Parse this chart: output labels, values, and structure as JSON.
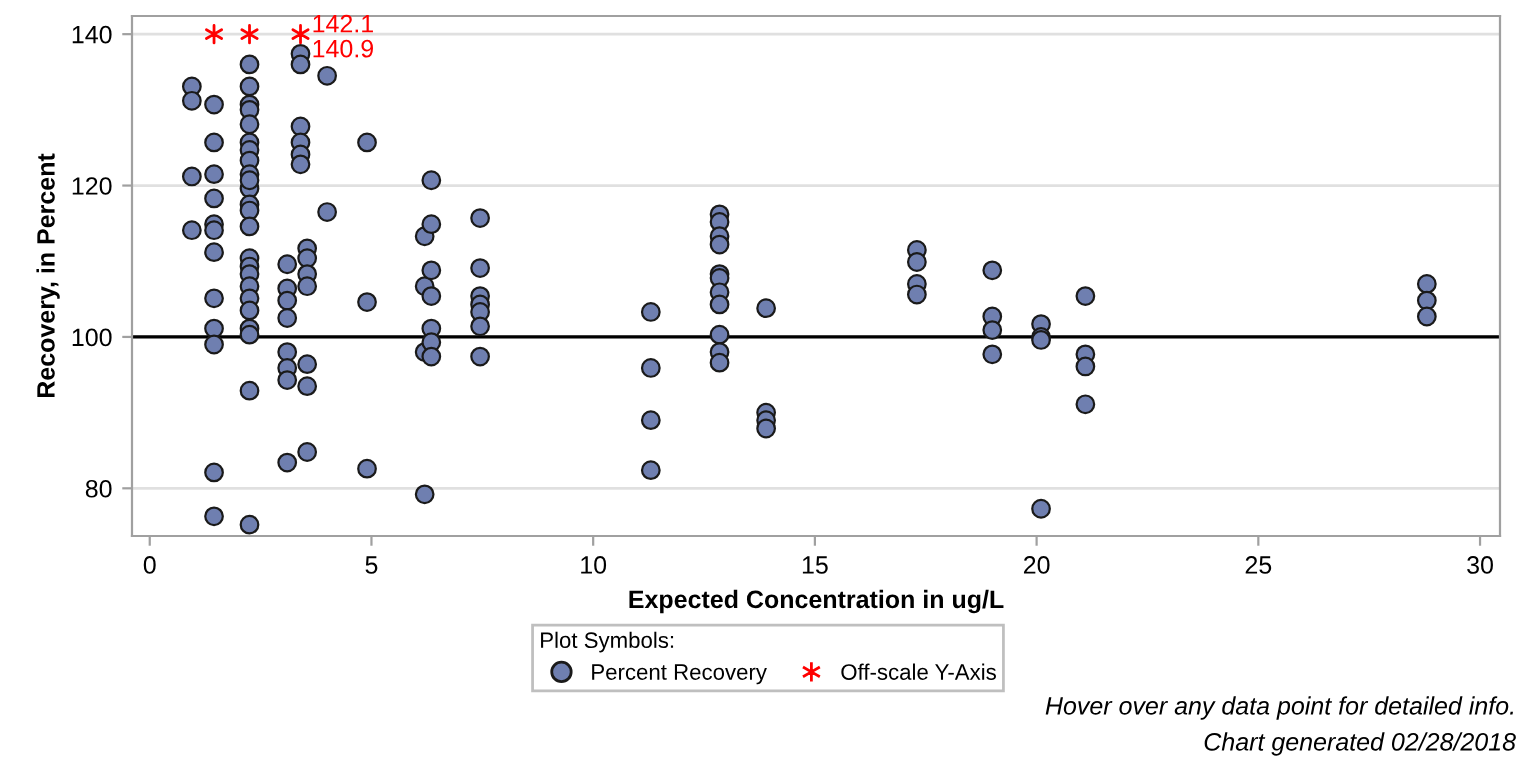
{
  "chart_data": {
    "type": "scatter",
    "xlabel": "Expected Concentration in ug/L",
    "ylabel": "Recovery, in Percent",
    "xlim": [
      -0.4,
      30.45
    ],
    "ylim": [
      73.7,
      142.4
    ],
    "xticks": [
      0,
      5,
      10,
      15,
      20,
      25,
      30
    ],
    "yticks": [
      80,
      100,
      120,
      140
    ],
    "grid": "y",
    "legend": "bottom",
    "legend_title": "Plot Symbols:",
    "ref_lines": [
      {
        "axis": "y",
        "value": 100,
        "color": "#000000",
        "line_style": "solid"
      }
    ],
    "series": [
      {
        "name": "Percent Recovery",
        "color": "#6f7fb0",
        "marker": "circle",
        "x": [
          0.95,
          0.95,
          0.95,
          0.95,
          1.45,
          1.45,
          1.45,
          1.45,
          1.45,
          1.45,
          1.45,
          1.45,
          1.45,
          1.45,
          1.45,
          1.45,
          2.25,
          2.25,
          2.25,
          2.25,
          2.25,
          2.25,
          2.25,
          2.25,
          2.25,
          2.25,
          2.25,
          2.25,
          2.25,
          2.25,
          2.25,
          2.25,
          2.25,
          2.25,
          2.25,
          2.25,
          2.25,
          2.25,
          2.25,
          2.25,
          3.1,
          3.1,
          3.1,
          3.1,
          3.1,
          3.1,
          3.1,
          3.1,
          3.4,
          3.4,
          3.4,
          3.4,
          3.4,
          3.4,
          3.55,
          3.55,
          3.55,
          3.55,
          3.55,
          3.55,
          3.55,
          4.0,
          4.0,
          4.9,
          4.9,
          4.9,
          6.2,
          6.2,
          6.2,
          6.2,
          6.35,
          6.35,
          6.35,
          6.35,
          6.35,
          6.35,
          6.35,
          7.45,
          7.45,
          7.45,
          7.45,
          7.45,
          7.45,
          7.45,
          11.3,
          11.3,
          11.3,
          11.3,
          12.85,
          12.85,
          12.85,
          12.85,
          12.85,
          12.85,
          12.85,
          12.85,
          12.85,
          12.85,
          12.85,
          13.9,
          13.9,
          13.9,
          13.9,
          17.3,
          17.3,
          17.3,
          17.3,
          19.0,
          19.0,
          19.0,
          19.0,
          20.1,
          20.1,
          20.1,
          20.1,
          21.1,
          21.1,
          21.1,
          21.1,
          28.8,
          28.8,
          28.8
        ],
        "values": [
          133.1,
          131.2,
          121.2,
          114.1,
          130.7,
          125.7,
          121.5,
          118.3,
          114.9,
          114.1,
          111.2,
          105.1,
          101.1,
          99.0,
          82.1,
          76.3,
          136.0,
          133.1,
          130.7,
          130.0,
          128.1,
          125.7,
          124.7,
          123.3,
          121.5,
          119.6,
          117.5,
          116.7,
          114.6,
          110.4,
          109.3,
          108.3,
          106.7,
          105.1,
          103.5,
          101.1,
          100.3,
          92.9,
          120.7,
          75.2,
          109.6,
          106.4,
          104.8,
          102.5,
          98.0,
          95.9,
          94.3,
          83.4,
          137.4,
          136.0,
          127.8,
          125.7,
          124.1,
          122.8,
          111.7,
          110.4,
          108.3,
          106.7,
          96.4,
          93.5,
          84.8,
          134.5,
          116.5,
          125.7,
          104.6,
          82.6,
          113.3,
          106.7,
          98.0,
          79.2,
          120.7,
          114.9,
          108.8,
          105.4,
          101.1,
          99.3,
          97.4,
          115.7,
          109.1,
          105.4,
          104.3,
          103.3,
          101.4,
          97.4,
          103.3,
          95.9,
          89.0,
          82.4,
          116.2,
          115.2,
          113.3,
          112.2,
          108.3,
          107.8,
          105.9,
          104.3,
          100.3,
          98.0,
          96.6,
          103.8,
          90.0,
          89.0,
          87.9,
          111.5,
          109.9,
          107.0,
          105.6,
          108.8,
          102.7,
          100.9,
          97.7,
          101.7,
          100.0,
          99.6,
          77.3,
          105.4,
          97.7,
          96.1,
          91.1,
          107.0,
          104.8,
          102.7
        ]
      },
      {
        "name": "Off-scale Y-Axis",
        "color": "#ff0000",
        "marker": "cross",
        "x": [
          1.45,
          2.25,
          3.4
        ],
        "values": [
          140,
          140,
          140
        ]
      }
    ],
    "annotations": [
      {
        "text": "142.1",
        "x": 3.4,
        "y": 140
      },
      {
        "text": "140.9",
        "x": 3.4,
        "y": 140
      },
      "Hover over any data point for detailed info.",
      "Chart generated 02/28/2018"
    ]
  }
}
